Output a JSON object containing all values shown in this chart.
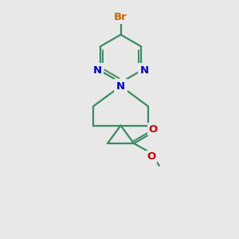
{
  "bg_color": "#e8e8e8",
  "bond_color": "#3a8a60",
  "bond_width": 1.6,
  "atom_colors": {
    "Br": "#cc6600",
    "N": "#0000cc",
    "O": "#cc0000",
    "C": "#3a8a60"
  }
}
